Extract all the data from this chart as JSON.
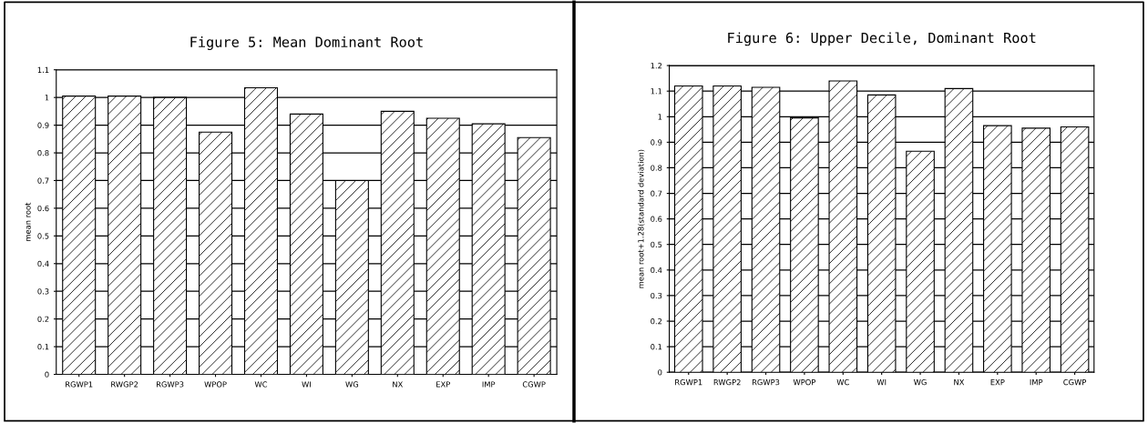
{
  "chart_data": [
    {
      "type": "bar",
      "title": "Figure 5: Mean Dominant Root",
      "ylabel": "mean root",
      "categories": [
        "RGWP1",
        "RWGP2",
        "RGWP3",
        "WPOP",
        "WC",
        "WI",
        "WG",
        "NX",
        "EXP",
        "IMP",
        "CGWP"
      ],
      "values": [
        1.005,
        1.005,
        1.0,
        0.875,
        1.035,
        0.94,
        0.7,
        0.95,
        0.925,
        0.905,
        0.855
      ],
      "color": "#000000",
      "ylim": [
        0,
        1.1
      ],
      "yticks": [
        0,
        0.1,
        0.2,
        0.3,
        0.4,
        0.5,
        0.6,
        0.7,
        0.8,
        0.9,
        1,
        1.1
      ],
      "grid": "y"
    },
    {
      "type": "bar",
      "title": "Figure 6: Upper Decile, Dominant Root",
      "ylabel": "mean root+1.28(standard deviation)",
      "categories": [
        "RGWP1",
        "RWGP2",
        "RGWP3",
        "WPOP",
        "WC",
        "WI",
        "WG",
        "NX",
        "EXP",
        "IMP",
        "CGWP"
      ],
      "values": [
        1.12,
        1.12,
        1.115,
        0.995,
        1.14,
        1.085,
        0.865,
        1.11,
        0.965,
        0.955,
        0.96
      ],
      "color": "#000000",
      "ylim": [
        0,
        1.2
      ],
      "yticks": [
        0,
        0.1,
        0.2,
        0.3,
        0.4,
        0.5,
        0.6,
        0.7,
        0.8,
        0.9,
        1,
        1.1,
        1.2
      ],
      "grid": "y"
    }
  ]
}
